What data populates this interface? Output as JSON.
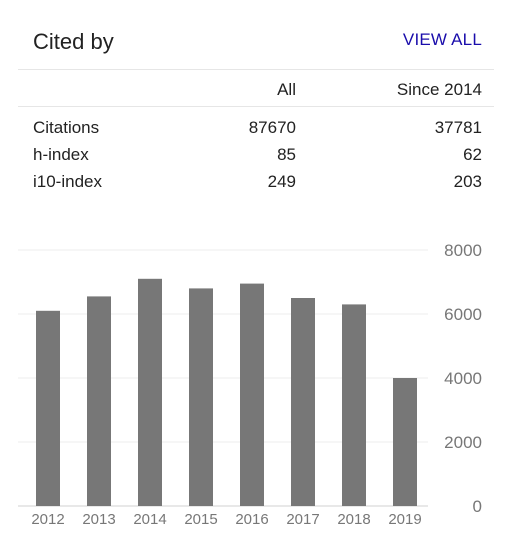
{
  "header": {
    "title": "Cited by",
    "view_all_label": "VIEW ALL"
  },
  "table": {
    "columns": [
      "",
      "All",
      "Since 2014"
    ],
    "rows": [
      {
        "label": "Citations",
        "all": "87670",
        "since": "37781"
      },
      {
        "label": "h-index",
        "all": "85",
        "since": "62"
      },
      {
        "label": "i10-index",
        "all": "249",
        "since": "203"
      }
    ]
  },
  "chart_data": {
    "type": "bar",
    "categories": [
      "2012",
      "2013",
      "2014",
      "2015",
      "2016",
      "2017",
      "2018",
      "2019"
    ],
    "values": [
      6100,
      6550,
      7100,
      6800,
      6950,
      6500,
      6300,
      4000
    ],
    "yticks": [
      0,
      2000,
      4000,
      6000,
      8000
    ],
    "ylim": [
      0,
      8000
    ],
    "bar_color": "#777777",
    "grid": true,
    "yaxis_position": "right"
  }
}
